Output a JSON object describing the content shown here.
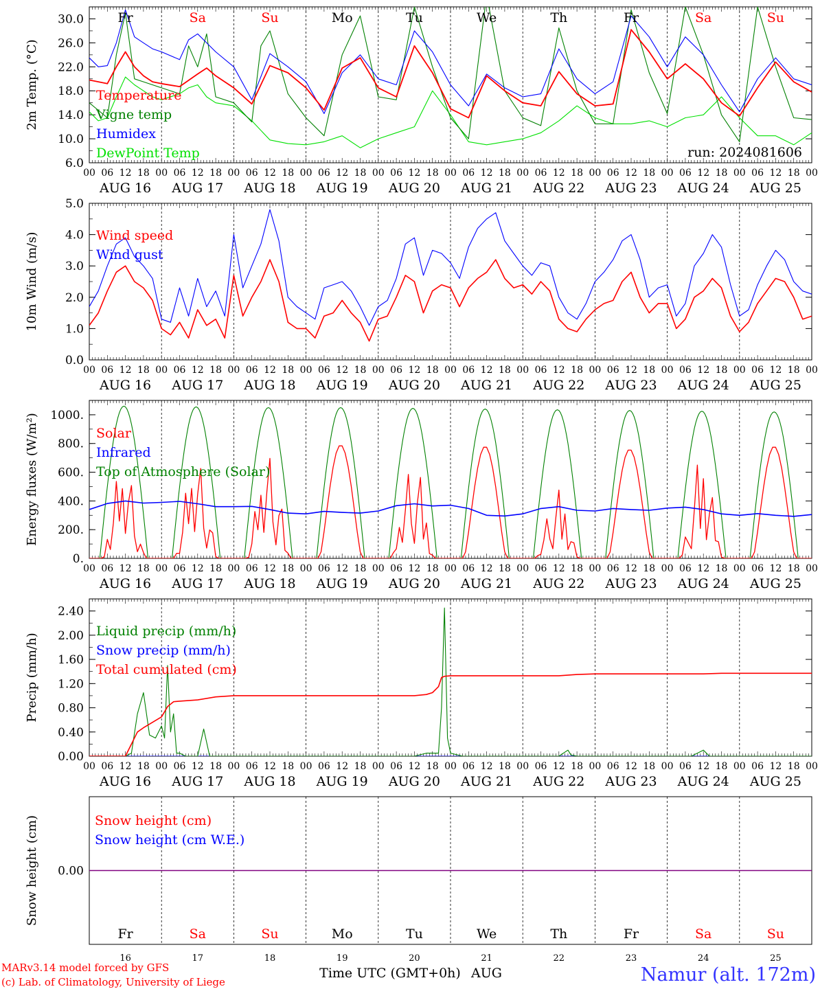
{
  "meta": {
    "run_label": "run: 2024081606",
    "credit_line1": "MARv3.14 model forced by GFS",
    "credit_line2": "(c) Lab. of Climatology, University of Liege",
    "station": "Namur (alt. 172m)",
    "xaxis_label": "Time UTC (GMT+0h)",
    "month_label": "AUG"
  },
  "colors": {
    "red": "#ff0000",
    "blue": "#0000ff",
    "darkgreen": "#008000",
    "lightgreen": "#00e000",
    "purple": "#800080",
    "station": "#3333ff"
  },
  "days": {
    "weekday_labels": [
      "Fr",
      "Sa",
      "Su",
      "Mo",
      "Tu",
      "We",
      "Th",
      "Fr",
      "Sa",
      "Su"
    ],
    "weekend": [
      false,
      true,
      true,
      false,
      false,
      false,
      false,
      false,
      true,
      true
    ],
    "date_labels": [
      "AUG 16",
      "AUG 17",
      "AUG 18",
      "AUG 19",
      "AUG 20",
      "AUG 21",
      "AUG 22",
      "AUG 23",
      "AUG 24",
      "AUG 25"
    ],
    "day_numbers": [
      "16",
      "17",
      "18",
      "19",
      "20",
      "21",
      "22",
      "23",
      "24",
      "25"
    ],
    "hour_labels": [
      "00",
      "06",
      "12",
      "18"
    ],
    "final_hour_label": "00"
  },
  "chart_data": [
    {
      "type": "line",
      "ylabel": "2m Temp. (°C)",
      "ylim": [
        6,
        32
      ],
      "yticks": [
        "6.0",
        "10.0",
        "14.0",
        "18.0",
        "22.0",
        "26.0",
        "30.0"
      ],
      "x_unit": "hours since AUG 16 00 UTC",
      "series": [
        {
          "name": "Temperature",
          "color": "red",
          "x": [
            0,
            6,
            9,
            12,
            15,
            18,
            21,
            24,
            30,
            36,
            39,
            42,
            48,
            54,
            60,
            66,
            72,
            78,
            84,
            90,
            96,
            102,
            108,
            114,
            120,
            126,
            132,
            138,
            144,
            150,
            156,
            162,
            168,
            174,
            180,
            186,
            192,
            198,
            204,
            210,
            216,
            222,
            228,
            234,
            240
          ],
          "y": [
            19.8,
            19.2,
            22,
            24.5,
            22,
            20.5,
            19.5,
            19.2,
            18.7,
            20.8,
            21.8,
            20.5,
            18.5,
            15.8,
            22.2,
            21,
            18.5,
            14.8,
            21.8,
            23.5,
            18.5,
            17,
            25.5,
            21,
            15,
            13.5,
            20.5,
            18,
            16,
            15.5,
            21.2,
            17.5,
            15.5,
            15.8,
            28.2,
            24.5,
            20,
            22.5,
            20,
            16,
            13.8,
            18.5,
            22.8,
            19.5,
            17.8
          ]
        },
        {
          "name": "Vigne temp",
          "color": "darkgreen",
          "x": [
            0,
            6,
            9,
            12,
            15,
            18,
            24,
            30,
            33,
            36,
            39,
            42,
            48,
            54,
            57,
            60,
            66,
            72,
            78,
            84,
            90,
            96,
            102,
            108,
            114,
            120,
            126,
            132,
            138,
            144,
            150,
            156,
            162,
            168,
            174,
            180,
            186,
            192,
            198,
            204,
            210,
            216,
            222,
            228,
            234,
            240
          ],
          "y": [
            16,
            13.5,
            24,
            31,
            20,
            19.5,
            18.5,
            17.5,
            25.5,
            22,
            27.5,
            17,
            16,
            12.8,
            25.5,
            28,
            17.5,
            13.5,
            10.5,
            24,
            30.5,
            17,
            16.5,
            32,
            22,
            13.5,
            10,
            34,
            18,
            13.5,
            12.2,
            28.5,
            18,
            12.5,
            12.5,
            31.5,
            21,
            14.2,
            32,
            24,
            14,
            9.5,
            32,
            22,
            13.5,
            13.2
          ]
        },
        {
          "name": "Humidex",
          "color": "blue",
          "x": [
            0,
            3,
            6,
            9,
            12,
            15,
            18,
            21,
            24,
            30,
            33,
            36,
            39,
            42,
            48,
            54,
            60,
            66,
            72,
            78,
            84,
            90,
            96,
            102,
            108,
            114,
            120,
            126,
            132,
            138,
            144,
            150,
            156,
            162,
            168,
            174,
            180,
            186,
            192,
            198,
            204,
            210,
            216,
            222,
            228,
            234,
            240
          ],
          "y": [
            23.5,
            22,
            22.2,
            26,
            31.5,
            27,
            26,
            25,
            24.5,
            23.2,
            26.5,
            27.5,
            26,
            24.5,
            22,
            16.5,
            24.2,
            22,
            19.5,
            14.2,
            21,
            24,
            20,
            19,
            28,
            24.5,
            19,
            15.5,
            20.8,
            18.5,
            17,
            17.5,
            25,
            20,
            17.5,
            19.5,
            30.5,
            27,
            22,
            27,
            24,
            19,
            14.5,
            20,
            23.5,
            20,
            19
          ]
        },
        {
          "name": "DewPoint Temp",
          "color": "lightgreen",
          "x": [
            0,
            3,
            6,
            9,
            12,
            15,
            18,
            21,
            24,
            30,
            33,
            36,
            39,
            42,
            48,
            54,
            60,
            66,
            72,
            78,
            84,
            90,
            96,
            102,
            108,
            114,
            120,
            126,
            132,
            138,
            144,
            150,
            156,
            162,
            168,
            174,
            180,
            186,
            192,
            198,
            204,
            210,
            216,
            222,
            228,
            234,
            240
          ],
          "y": [
            14.5,
            13,
            13.5,
            17,
            20.3,
            19,
            18,
            17,
            16.5,
            17.5,
            18.5,
            19,
            17,
            16,
            15.5,
            13,
            9.8,
            9.2,
            9,
            9.5,
            10.5,
            8.5,
            10,
            11,
            12,
            18,
            14,
            9.5,
            9,
            9.5,
            10,
            11,
            13,
            15.5,
            13.5,
            12.5,
            12.5,
            13,
            12,
            13.5,
            14,
            17,
            13.5,
            10.5,
            10.5,
            9,
            11
          ]
        }
      ]
    },
    {
      "type": "line",
      "ylabel": "10m Wind (m/s)",
      "ylim": [
        0,
        5
      ],
      "yticks": [
        "0.0",
        "1.0",
        "2.0",
        "3.0",
        "4.0",
        "5.0"
      ],
      "series": [
        {
          "name": "Wind speed",
          "color": "red",
          "x": [
            0,
            3,
            6,
            9,
            12,
            15,
            18,
            21,
            24,
            27,
            30,
            33,
            36,
            39,
            42,
            45,
            48,
            51,
            54,
            57,
            60,
            63,
            66,
            69,
            72,
            75,
            78,
            81,
            84,
            87,
            90,
            93,
            96,
            99,
            102,
            105,
            108,
            111,
            114,
            117,
            120,
            123,
            126,
            129,
            132,
            135,
            138,
            141,
            144,
            147,
            150,
            153,
            156,
            159,
            162,
            165,
            168,
            171,
            174,
            177,
            180,
            183,
            186,
            189,
            192,
            195,
            198,
            201,
            204,
            207,
            210,
            213,
            216,
            219,
            222,
            225,
            228,
            231,
            234,
            237,
            240
          ],
          "y": [
            1.1,
            1.5,
            2.2,
            2.8,
            3.0,
            2.5,
            2.3,
            1.9,
            1.0,
            0.8,
            1.2,
            0.7,
            1.6,
            1.1,
            1.3,
            0.7,
            2.7,
            1.4,
            2.0,
            2.5,
            3.2,
            2.5,
            1.2,
            1.0,
            1.0,
            0.7,
            1.4,
            1.5,
            1.9,
            1.5,
            1.2,
            0.6,
            1.3,
            1.4,
            2.0,
            2.7,
            2.5,
            1.5,
            2.2,
            2.4,
            2.3,
            1.7,
            2.3,
            2.6,
            2.8,
            3.2,
            2.6,
            2.3,
            2.4,
            2.1,
            2.5,
            2.2,
            1.3,
            1.0,
            0.9,
            1.3,
            1.6,
            1.8,
            1.9,
            2.5,
            2.8,
            2.0,
            1.5,
            1.8,
            1.8,
            1.0,
            1.3,
            2.0,
            2.2,
            2.6,
            2.3,
            1.4,
            0.9,
            1.2,
            1.8,
            2.2,
            2.6,
            2.5,
            2.0,
            1.3,
            1.4
          ]
        },
        {
          "name": "Wind gust",
          "color": "blue",
          "x": [
            0,
            3,
            6,
            9,
            12,
            15,
            18,
            21,
            24,
            27,
            30,
            33,
            36,
            39,
            42,
            45,
            48,
            51,
            54,
            57,
            60,
            63,
            66,
            69,
            72,
            75,
            78,
            81,
            84,
            87,
            90,
            93,
            96,
            99,
            102,
            105,
            108,
            111,
            114,
            117,
            120,
            123,
            126,
            129,
            132,
            135,
            138,
            141,
            144,
            147,
            150,
            153,
            156,
            159,
            162,
            165,
            168,
            171,
            174,
            177,
            180,
            183,
            186,
            189,
            192,
            195,
            198,
            201,
            204,
            207,
            210,
            213,
            216,
            219,
            222,
            225,
            228,
            231,
            234,
            237,
            240
          ],
          "y": [
            1.7,
            2.2,
            3.0,
            3.7,
            3.9,
            3.3,
            3.0,
            2.6,
            1.3,
            1.2,
            2.3,
            1.4,
            2.6,
            1.7,
            2.2,
            1.4,
            4.0,
            2.3,
            3.0,
            3.7,
            4.8,
            3.8,
            2.0,
            1.7,
            1.5,
            1.3,
            2.3,
            2.4,
            2.5,
            2.2,
            1.7,
            1.1,
            1.7,
            1.9,
            2.6,
            3.7,
            3.9,
            2.7,
            3.5,
            3.4,
            3.1,
            2.6,
            3.6,
            4.2,
            4.5,
            4.7,
            3.8,
            3.4,
            3.0,
            2.7,
            3.1,
            3.0,
            2.0,
            1.5,
            1.3,
            1.8,
            2.5,
            2.8,
            3.2,
            3.8,
            4.0,
            3.2,
            2.0,
            2.3,
            2.4,
            1.4,
            1.8,
            3.0,
            3.4,
            4.0,
            3.6,
            2.4,
            1.4,
            1.6,
            2.4,
            3.0,
            3.5,
            3.2,
            2.5,
            2.2,
            2.1
          ]
        }
      ]
    },
    {
      "type": "line",
      "ylabel": "Energy fluxes (W/m²)",
      "ylim": [
        0,
        1100
      ],
      "yticks": [
        "0.",
        "200.",
        "400.",
        "600.",
        "800.",
        "1000."
      ],
      "series": [
        {
          "name": "Solar",
          "color": "red",
          "daily_peak": [
            700,
            750,
            780,
            790,
            700,
            780,
            480,
            760,
            700,
            780
          ],
          "note_days": "cloudy spikes on AUG 16, 17, 18, 20, 22, 24"
        },
        {
          "name": "Infrared",
          "color": "blue",
          "x": [
            0,
            12,
            24,
            36,
            48,
            60,
            72,
            84,
            96,
            108,
            120,
            132,
            144,
            156,
            168,
            180,
            192,
            204,
            216,
            228,
            240
          ],
          "y": [
            340,
            400,
            390,
            380,
            360,
            340,
            310,
            320,
            330,
            380,
            370,
            300,
            310,
            360,
            330,
            340,
            350,
            340,
            300,
            300,
            305
          ]
        },
        {
          "name": "Top of Atmosphere (Solar)",
          "color": "darkgreen",
          "daily_peak": [
            1060,
            1055,
            1050,
            1050,
            1045,
            1040,
            1035,
            1030,
            1025,
            1020
          ]
        }
      ]
    },
    {
      "type": "line",
      "ylabel": "Precip (mm/h)",
      "ylim": [
        0,
        2.6
      ],
      "yticks": [
        "0.00",
        "0.40",
        "0.80",
        "1.20",
        "1.60",
        "2.00",
        "2.40"
      ],
      "series": [
        {
          "name": "Liquid precip (mm/h)",
          "color": "darkgreen",
          "x": [
            0,
            12,
            14,
            16,
            18,
            20,
            22,
            24,
            25,
            26,
            27,
            28,
            29,
            30,
            32,
            36,
            38,
            40,
            42,
            48,
            60,
            72,
            84,
            96,
            108,
            112,
            116,
            117,
            118,
            119,
            120,
            124,
            144,
            156,
            159,
            160,
            162,
            168,
            200,
            204,
            206,
            208,
            240
          ],
          "y": [
            0,
            0,
            0.05,
            0.7,
            1.05,
            0.35,
            0.3,
            0.5,
            0.3,
            1.5,
            0.4,
            0.7,
            0.05,
            0.05,
            0,
            0,
            0.45,
            0,
            0,
            0,
            0,
            0,
            0,
            0,
            0,
            0.05,
            0.05,
            0.8,
            2.45,
            0.3,
            0.05,
            0,
            0,
            0,
            0.1,
            0.02,
            0,
            0,
            0,
            0.1,
            0,
            0,
            0
          ]
        },
        {
          "name": "Snow precip (mm/h)",
          "color": "blue",
          "x": [
            0,
            240
          ],
          "y": [
            0,
            0
          ]
        },
        {
          "name": "Total cumulated (cm)",
          "color": "red",
          "x": [
            0,
            12,
            14,
            16,
            18,
            20,
            24,
            26,
            28,
            30,
            36,
            42,
            48,
            60,
            72,
            84,
            96,
            108,
            112,
            114,
            116,
            117,
            118,
            120,
            132,
            156,
            162,
            168,
            204,
            210,
            240
          ],
          "y": [
            0,
            0,
            0.2,
            0.4,
            0.47,
            0.53,
            0.65,
            0.82,
            0.9,
            0.91,
            0.93,
            0.98,
            1.0,
            1.0,
            1.0,
            1.0,
            1.0,
            1.0,
            1.02,
            1.05,
            1.15,
            1.3,
            1.32,
            1.33,
            1.33,
            1.33,
            1.35,
            1.36,
            1.36,
            1.37,
            1.37
          ]
        }
      ]
    },
    {
      "type": "line",
      "ylabel": "Snow height (cm)",
      "yticks": [
        "0.00"
      ],
      "series": [
        {
          "name": "Snow height (cm)",
          "color": "red",
          "x": [
            0,
            240
          ],
          "y": [
            0,
            0
          ]
        },
        {
          "name": "Snow height (cm W.E.)",
          "color": "blue",
          "x": [
            0,
            240
          ],
          "y": [
            0,
            0
          ]
        }
      ]
    }
  ]
}
